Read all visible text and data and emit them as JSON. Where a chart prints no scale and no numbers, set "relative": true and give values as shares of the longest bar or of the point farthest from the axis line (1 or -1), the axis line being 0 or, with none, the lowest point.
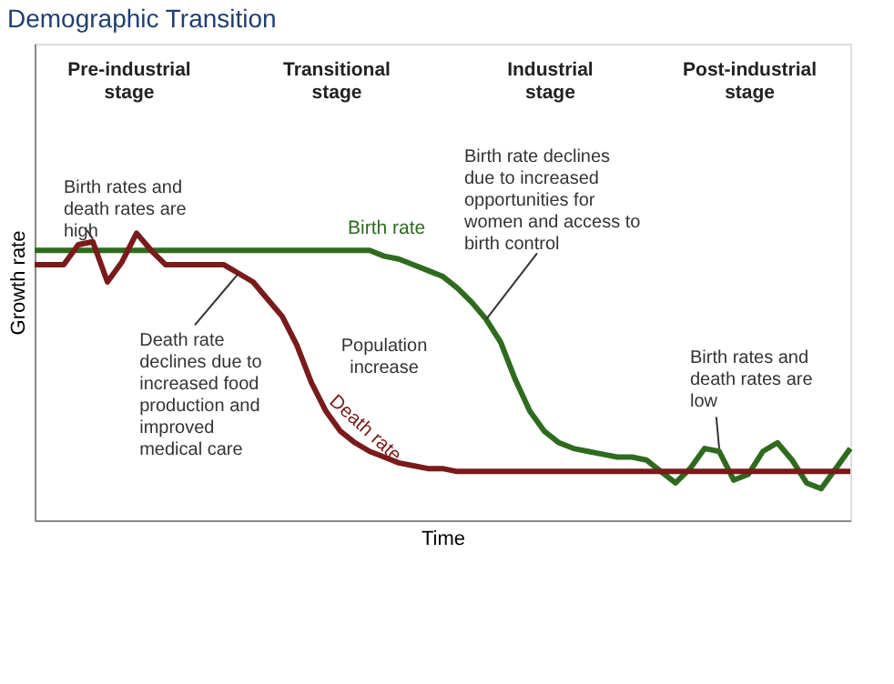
{
  "chart_data": {
    "type": "line",
    "title": "Demographic Transition",
    "xlabel": "Time",
    "ylabel": "Growth rate",
    "relative": true,
    "categories": [
      null,
      null,
      null,
      null,
      null,
      null,
      null,
      null,
      null,
      null,
      null,
      null,
      null,
      null,
      null,
      null,
      null,
      null,
      null,
      null,
      null,
      null,
      null,
      null,
      null,
      null,
      null,
      null,
      null,
      null,
      null,
      null,
      null,
      null,
      null,
      null,
      null,
      null,
      null,
      null,
      null,
      null,
      null,
      null,
      null,
      null,
      null,
      null,
      null,
      null,
      null,
      null,
      null,
      null,
      null,
      null,
      null
    ],
    "marker": "none",
    "line_style": "solid",
    "series": [
      {
        "name": "Birth rate",
        "color": "#2e6b1e",
        "values": [
          0.94,
          0.94,
          0.94,
          0.94,
          0.94,
          0.94,
          0.94,
          0.94,
          0.94,
          0.94,
          0.94,
          0.94,
          0.94,
          0.94,
          0.94,
          0.94,
          0.94,
          0.94,
          0.94,
          0.94,
          0.94,
          0.94,
          0.94,
          0.94,
          0.92,
          0.91,
          0.89,
          0.87,
          0.85,
          0.81,
          0.76,
          0.7,
          0.62,
          0.49,
          0.38,
          0.31,
          0.27,
          0.25,
          0.24,
          0.23,
          0.22,
          0.22,
          0.21,
          0.17,
          0.13,
          0.18,
          0.25,
          0.24,
          0.14,
          0.16,
          0.24,
          0.27,
          0.21,
          0.13,
          0.11,
          0.18,
          0.25
        ]
      },
      {
        "name": "Death rate",
        "color": "#7a1a1a",
        "values": [
          0.89,
          0.89,
          0.89,
          0.96,
          0.97,
          0.83,
          0.9,
          1.0,
          0.94,
          0.89,
          0.89,
          0.89,
          0.89,
          0.89,
          0.86,
          0.83,
          0.77,
          0.71,
          0.61,
          0.48,
          0.38,
          0.31,
          0.27,
          0.24,
          0.22,
          0.2,
          0.19,
          0.18,
          0.18,
          0.17,
          0.17,
          0.17,
          0.17,
          0.17,
          0.17,
          0.17,
          0.17,
          0.17,
          0.17,
          0.17,
          0.17,
          0.17,
          0.17,
          0.17,
          0.17,
          0.17,
          0.17,
          0.17,
          0.17,
          0.17,
          0.17,
          0.17,
          0.17,
          0.17,
          0.17,
          0.17,
          0.17
        ]
      }
    ],
    "annotations": [
      "Pre-industrial stage",
      "Transitional stage",
      "Industrial stage",
      "Post-industrial stage",
      "Birth rates and death rates are high",
      "Population increase",
      "Death rate declines due to increased food production and improved medical care",
      "Birth rate declines due to increased opportunities for women and access to birth control",
      "Birth rates and death rates are low"
    ]
  }
}
